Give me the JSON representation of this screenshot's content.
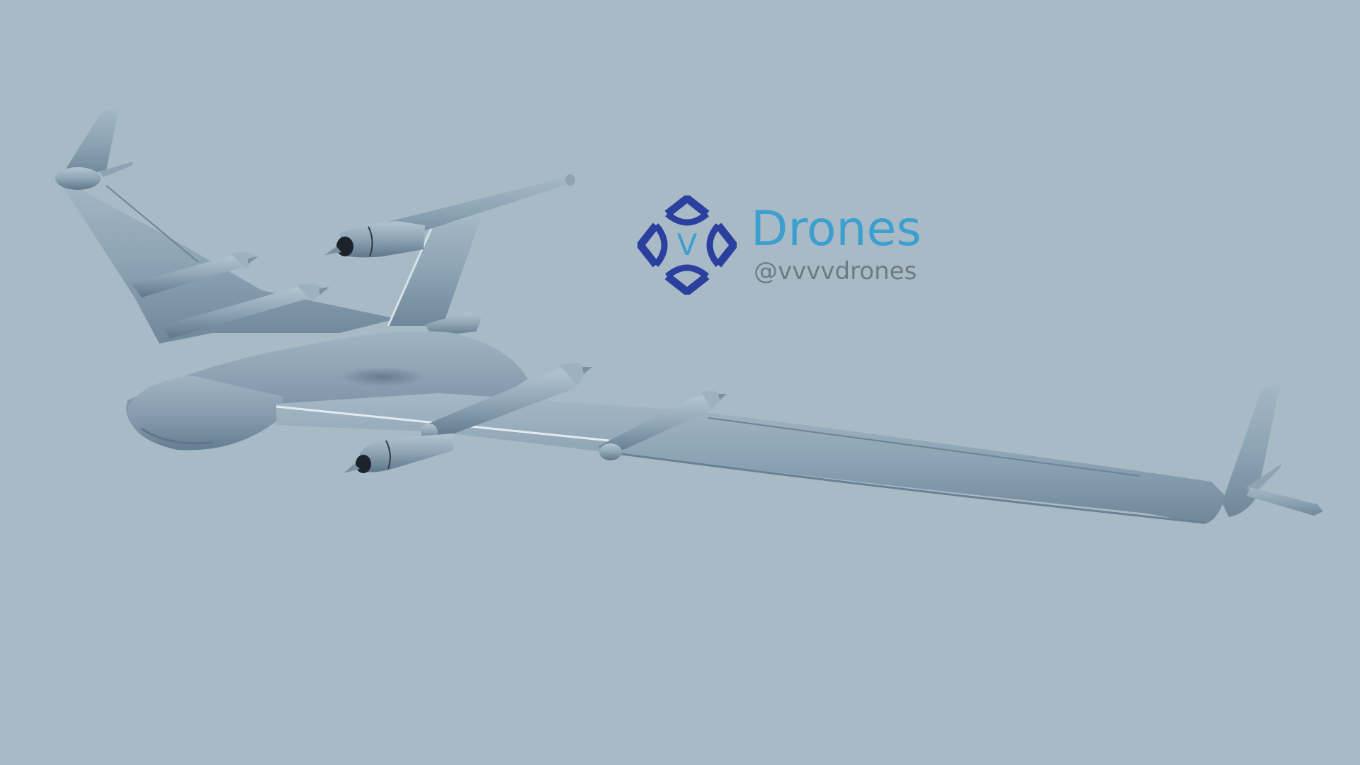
{
  "scene": {
    "subject": "drone-render",
    "background_color": "#a8bac5",
    "aircraft_color": "#8ea6b8"
  },
  "logo": {
    "mark_letter": "V",
    "brand_name": "Drones",
    "handle": "@vvvvdrones",
    "colors": {
      "mark_primary": "#2a3f9e",
      "mark_letter": "#3d9fd0",
      "brand_name": "#3d9fd0",
      "handle": "#6f7b84"
    }
  }
}
